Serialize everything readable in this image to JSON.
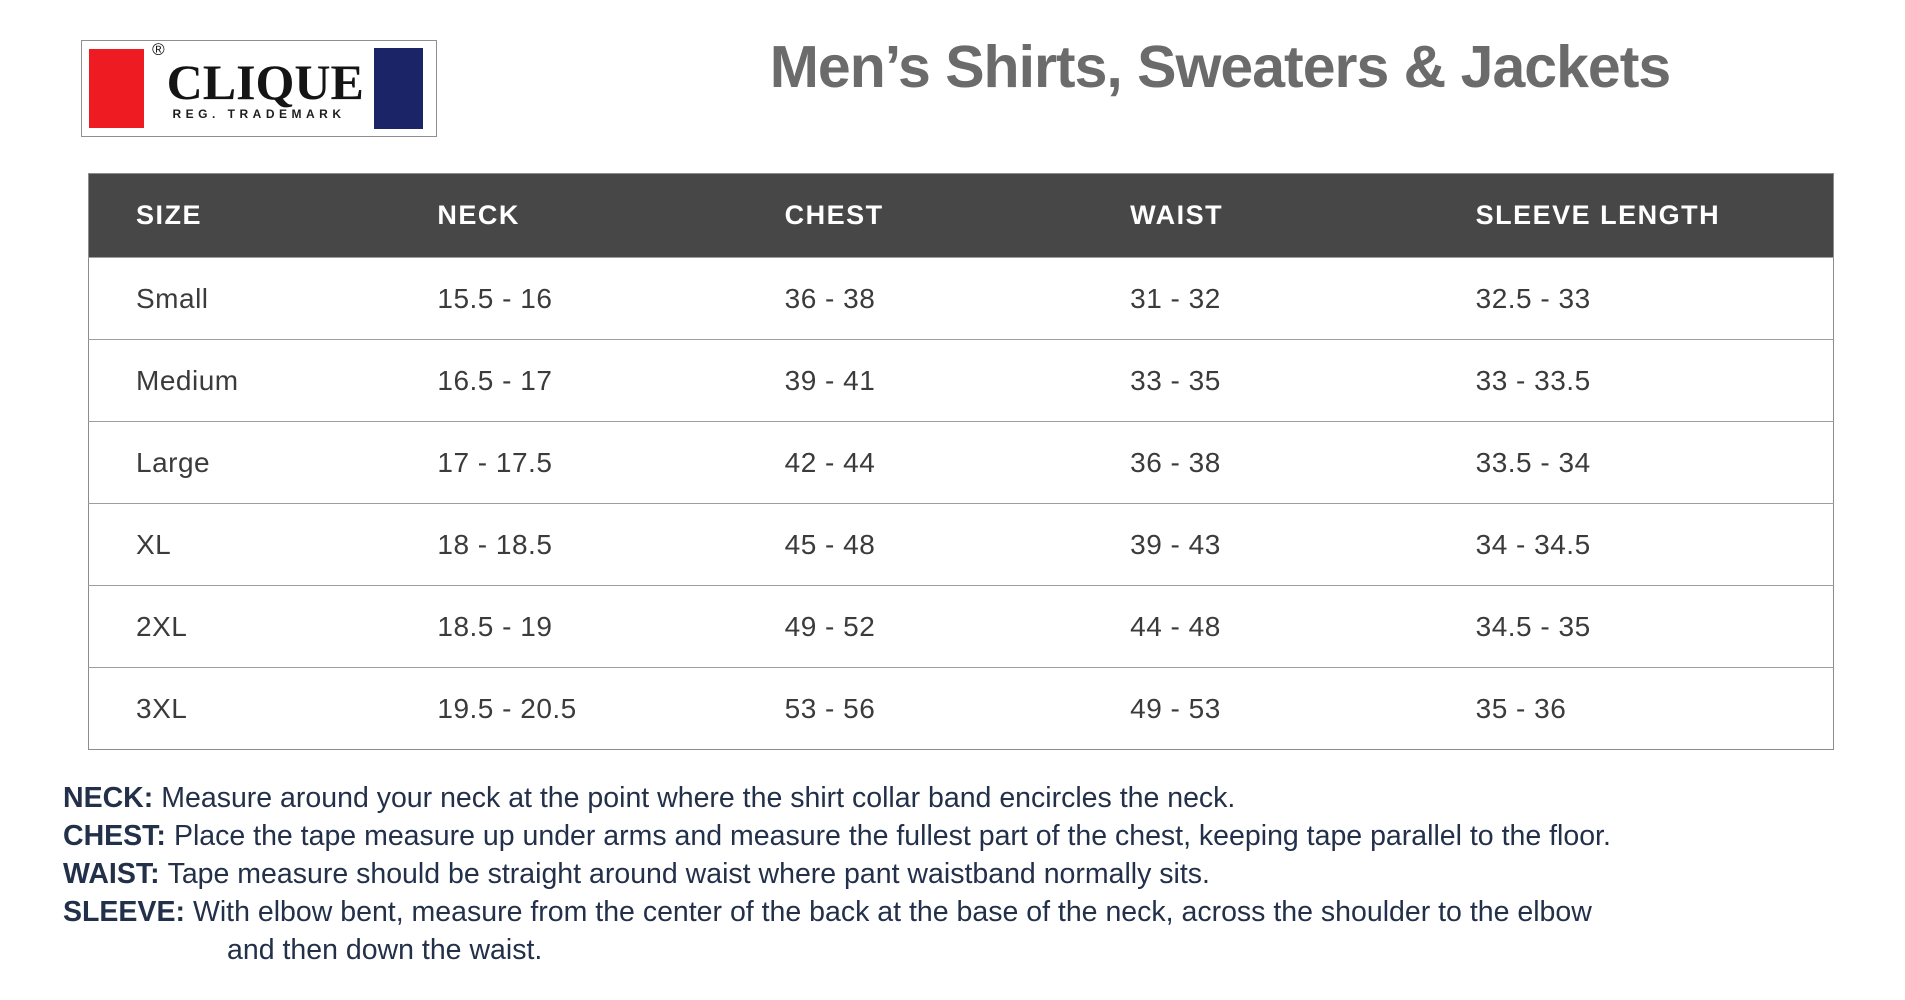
{
  "logo": {
    "brand": "CLIQUE",
    "registered_mark": "®",
    "tagline": "REG. TRADEMARK"
  },
  "header": {
    "title": "Men’s Shirts, Sweaters & Jackets"
  },
  "table": {
    "columns": [
      "SIZE",
      "NECK",
      "CHEST",
      "WAIST",
      "SLEEVE LENGTH"
    ],
    "rows": [
      {
        "size": "Small",
        "neck": "15.5 - 16",
        "chest": "36 - 38",
        "waist": "31 - 32",
        "sleeve": "32.5 - 33"
      },
      {
        "size": "Medium",
        "neck": "16.5 - 17",
        "chest": "39 - 41",
        "waist": "33 - 35",
        "sleeve": "33 - 33.5"
      },
      {
        "size": "Large",
        "neck": "17 - 17.5",
        "chest": "42 - 44",
        "waist": "36 - 38",
        "sleeve": "33.5 - 34"
      },
      {
        "size": "XL",
        "neck": "18 - 18.5",
        "chest": "45 - 48",
        "waist": "39 - 43",
        "sleeve": "34 - 34.5"
      },
      {
        "size": "2XL",
        "neck": "18.5 - 19",
        "chest": "49 - 52",
        "waist": "44 - 48",
        "sleeve": "34.5 - 35"
      },
      {
        "size": "3XL",
        "neck": "19.5 - 20.5",
        "chest": "53 - 56",
        "waist": "49 - 53",
        "sleeve": "35 - 36"
      }
    ]
  },
  "footnotes": [
    {
      "label": "NECK:",
      "text": "Measure around your neck at the point where the shirt collar band encircles the neck."
    },
    {
      "label": "CHEST:",
      "text": "Place the tape measure up under arms and measure the fullest part of the chest, keeping tape parallel to the floor."
    },
    {
      "label": "WAIST:",
      "text": "Tape measure should be straight around waist where pant waistband normally sits."
    },
    {
      "label": "SLEEVE:",
      "text": "With elbow bent, measure from the center of the back at the base of the neck, across the shoulder to the elbow",
      "text2": "and then down the waist."
    }
  ],
  "colors": {
    "header_bg": "#474747",
    "header_text": "#ffffff",
    "title_text": "#6b6b6b",
    "body_text": "#3b3b3b",
    "footnote_text": "#233049",
    "logo_red": "#ee1b23",
    "logo_navy": "#1c2468",
    "table_border": "#8c8c8c"
  }
}
